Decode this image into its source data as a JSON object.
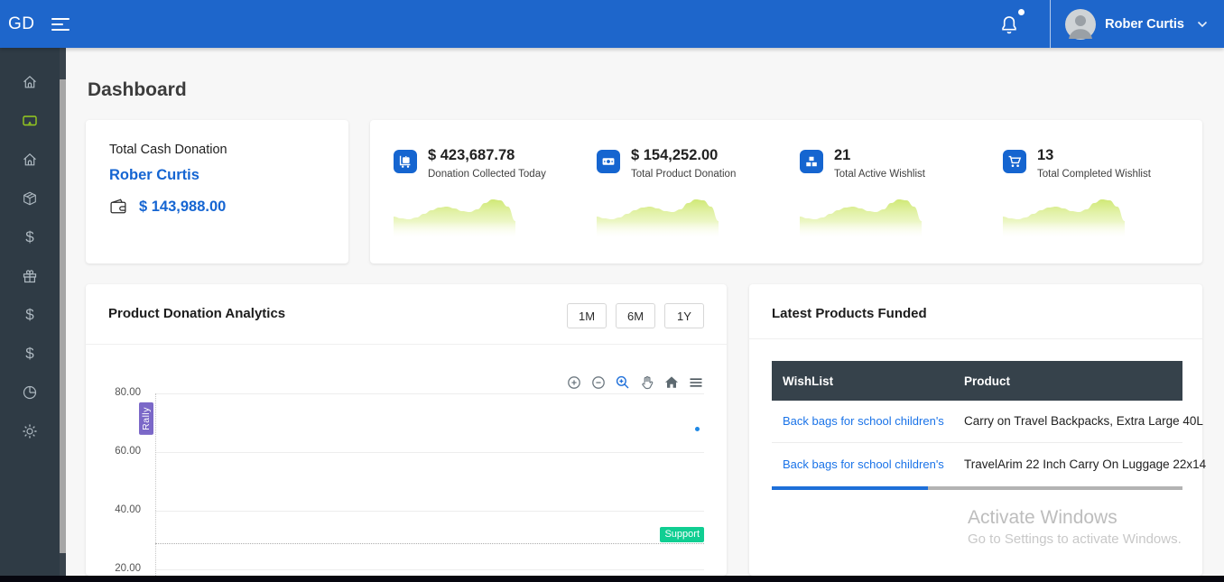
{
  "header": {
    "logo": "GD",
    "user_name": "Rober Curtis",
    "icons": [
      "menu-icon",
      "bell-icon",
      "avatar",
      "chevron-down-icon"
    ],
    "notification_dot": true
  },
  "sidebar": {
    "items": [
      {
        "icon": "home-icon",
        "active": false
      },
      {
        "icon": "monitor-icon",
        "active": true
      },
      {
        "icon": "home-alt-icon",
        "active": false
      },
      {
        "icon": "package-icon",
        "active": false
      },
      {
        "icon": "dollar-icon",
        "active": false
      },
      {
        "icon": "gift-icon",
        "active": false
      },
      {
        "icon": "dollar-icon-2",
        "active": false
      },
      {
        "icon": "dollar-icon-3",
        "active": false
      },
      {
        "icon": "pie-chart-icon",
        "active": false
      },
      {
        "icon": "settings-gear-icon",
        "active": false
      }
    ]
  },
  "page_title": "Dashboard",
  "summary_card": {
    "title": "Total Cash Donation",
    "user_name": "Rober Curtis",
    "icon": "wallet-icon",
    "amount": "$ 143,988.00"
  },
  "stats": [
    {
      "icon": "luggage-cart-icon",
      "value": "$ 423,687.78",
      "label": "Donation Collected Today"
    },
    {
      "icon": "money-bill-icon",
      "value": "$ 154,252.00",
      "label": "Total Product Donation"
    },
    {
      "icon": "boxes-icon",
      "value": "21",
      "label": "Total Active Wishlist"
    },
    {
      "icon": "cart-icon",
      "value": "13",
      "label": "Total Completed Wishlist"
    }
  ],
  "sparkline": {
    "type": "area",
    "color": "#cde76e",
    "values": [
      50,
      46,
      44,
      48,
      56,
      64,
      70,
      72,
      68,
      62,
      60,
      66,
      80,
      88,
      86,
      72,
      40
    ]
  },
  "analytics": {
    "title": "Product Donation Analytics",
    "range_buttons": [
      "1M",
      "6M",
      "1Y"
    ],
    "toolbar_icons": [
      "zoom-in-icon",
      "zoom-out-icon",
      "selection-zoom-icon",
      "pan-icon",
      "home-icon",
      "menu-icon"
    ],
    "chart_data": {
      "type": "line",
      "title": "Product Donation Analytics",
      "ylim": [
        20,
        80
      ],
      "y_ticks": [
        {
          "value": 80,
          "label": "80.00"
        },
        {
          "value": 60,
          "label": "60.00"
        },
        {
          "value": 40,
          "label": "40.00"
        },
        {
          "value": 20,
          "label": "20.00"
        }
      ],
      "grid": "horizontal",
      "annotations": [
        {
          "type": "label",
          "text": "Rally",
          "value": 72,
          "color": "#7b68c8",
          "orientation": "vertical"
        },
        {
          "type": "hline",
          "text": "Support",
          "value": 29,
          "color": "#10ce92",
          "style": "dotted"
        }
      ],
      "points": [
        {
          "x_pct": 98.8,
          "value": 68,
          "color": "#1e88e5"
        }
      ],
      "series": []
    }
  },
  "latest": {
    "title": "Latest Products Funded",
    "columns": [
      "WishList",
      "Product"
    ],
    "rows": [
      {
        "wishlist": "Back bags for school children's",
        "product": "Carry on Travel Backpacks, Extra Large 40L"
      },
      {
        "wishlist": "Back bags for school children's",
        "product": "TravelArim 22 Inch Carry On Luggage 22x14"
      }
    ]
  },
  "watermark": {
    "line1": "Activate Windows",
    "line2": "Go to Settings to activate Windows."
  },
  "colors": {
    "header_blue": "#1e66cb",
    "sidebar_dark": "#2f3b45",
    "accent_blue": "#1565d2",
    "link_blue": "#1a73e8",
    "active_green": "#97cc1f",
    "support_green": "#10ce92",
    "rally_purple": "#7b68c8",
    "table_header": "#36424b",
    "sparkline": "#cde76e"
  }
}
